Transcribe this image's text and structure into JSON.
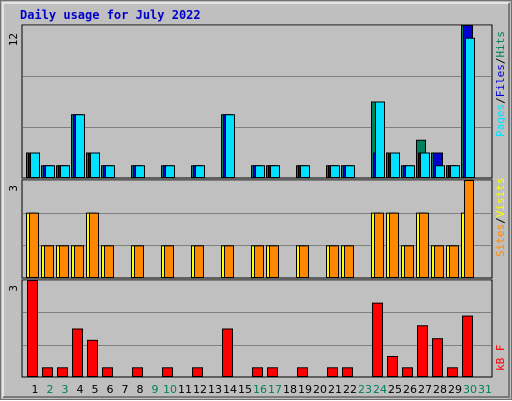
{
  "title": "Daily usage for July 2022",
  "colors": {
    "background": "#c0c0c0",
    "title": "#0000cc",
    "pages": "#00e0ff",
    "files": "#0000d0",
    "hits": "#00805c",
    "sites": "#ff8800",
    "visits": "#ffff00",
    "kbytes": "#ff0000",
    "weekend": "#00805c",
    "weekday": "#000000"
  },
  "legend": {
    "pages": "Pages",
    "files": "Files",
    "hits": "Hits",
    "sites": "Sites",
    "visits": "Visits",
    "kbytes": "kB F",
    "sep": "/"
  },
  "chart_data": [
    {
      "type": "bar",
      "panel": "top",
      "ymax_label": "12",
      "ylim": [
        0,
        12
      ],
      "categories": [
        "1",
        "2",
        "3",
        "4",
        "5",
        "6",
        "7",
        "8",
        "9",
        "10",
        "11",
        "12",
        "13",
        "14",
        "15",
        "16",
        "17",
        "18",
        "19",
        "20",
        "21",
        "22",
        "23",
        "24",
        "25",
        "26",
        "27",
        "28",
        "29",
        "30",
        "31"
      ],
      "weekend_days": [
        "2",
        "3",
        "9",
        "10",
        "16",
        "17",
        "23",
        "24",
        "30",
        "31"
      ],
      "series": [
        {
          "name": "Hits",
          "values": [
            2,
            1,
            1,
            5,
            2,
            1,
            0,
            1,
            0,
            1,
            0,
            1,
            0,
            5,
            0,
            1,
            1,
            0,
            1,
            0,
            1,
            1,
            0,
            6,
            2,
            1,
            3,
            2,
            1,
            12,
            0
          ]
        },
        {
          "name": "Files",
          "values": [
            2,
            1,
            1,
            5,
            2,
            1,
            0,
            1,
            0,
            1,
            0,
            1,
            0,
            5,
            0,
            1,
            1,
            0,
            1,
            0,
            1,
            1,
            0,
            2,
            2,
            1,
            2,
            2,
            1,
            12,
            0
          ]
        },
        {
          "name": "Pages",
          "values": [
            2,
            1,
            1,
            5,
            2,
            1,
            0,
            1,
            0,
            1,
            0,
            1,
            0,
            5,
            0,
            1,
            1,
            0,
            1,
            0,
            1,
            1,
            0,
            6,
            2,
            1,
            2,
            1,
            1,
            11,
            0
          ]
        }
      ]
    },
    {
      "type": "bar",
      "panel": "middle",
      "ymax_label": "3",
      "ylim": [
        0,
        3
      ],
      "series": [
        {
          "name": "Visits",
          "values": [
            2,
            1,
            1,
            1,
            2,
            1,
            0,
            1,
            0,
            1,
            0,
            1,
            0,
            1,
            0,
            1,
            1,
            0,
            1,
            0,
            1,
            1,
            0,
            2,
            2,
            1,
            2,
            1,
            1,
            2,
            0
          ]
        },
        {
          "name": "Sites",
          "values": [
            2,
            1,
            1,
            1,
            2,
            1,
            0,
            1,
            0,
            1,
            0,
            1,
            0,
            1,
            0,
            1,
            1,
            0,
            1,
            0,
            1,
            1,
            0,
            2,
            2,
            1,
            2,
            1,
            1,
            3,
            0
          ]
        }
      ]
    },
    {
      "type": "bar",
      "panel": "bottom",
      "ymax_label": "3",
      "ylim": [
        0,
        3
      ],
      "series": [
        {
          "name": "kB F",
          "values": [
            3,
            0.3,
            0.3,
            1.5,
            1.15,
            0.3,
            0,
            0.3,
            0,
            0.3,
            0,
            0.3,
            0,
            1.5,
            0,
            0.3,
            0.3,
            0,
            0.3,
            0,
            0.3,
            0.3,
            0,
            2.3,
            0.65,
            0.3,
            1.6,
            1.2,
            0.3,
            1.9,
            0
          ]
        }
      ]
    }
  ]
}
